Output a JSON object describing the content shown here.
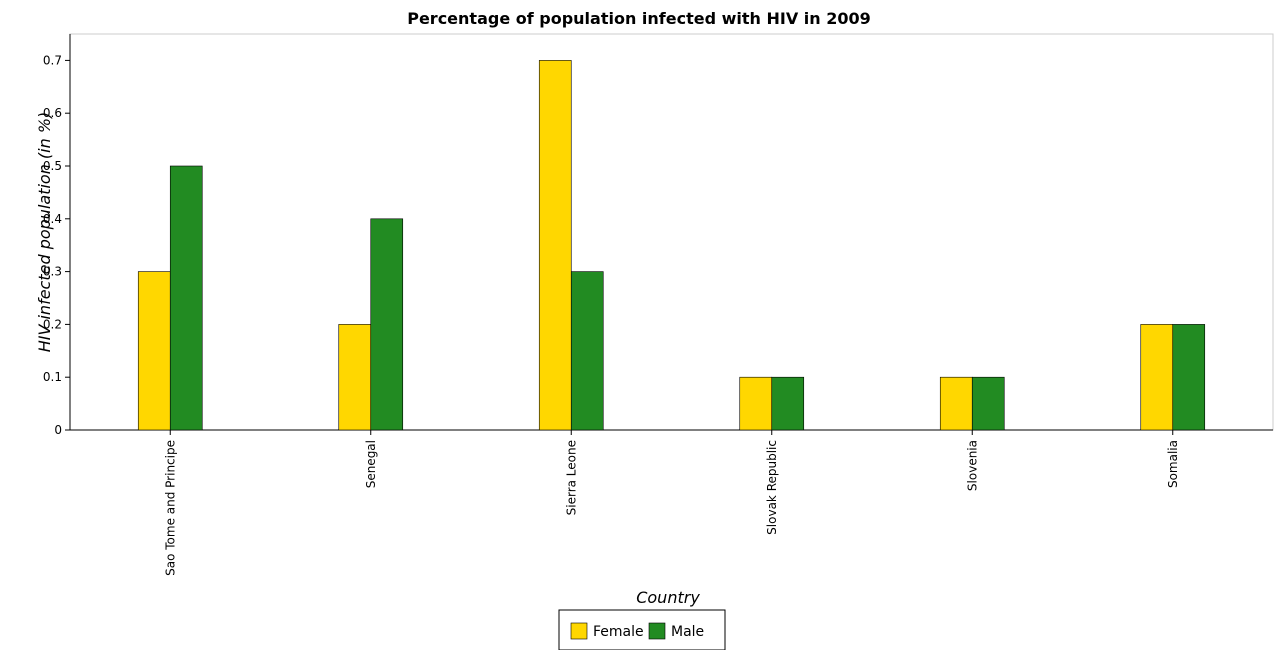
{
  "chart_data": {
    "type": "bar",
    "title": "Percentage of population infected with HIV in 2009",
    "xlabel": "Country",
    "ylabel": "HIV infected population (in %)",
    "categories": [
      "Sao Tome and Principe",
      "Senegal",
      "Sierra Leone",
      "Slovak Republic",
      "Slovenia",
      "Somalia"
    ],
    "series": [
      {
        "name": "Female",
        "color": "#FFD700",
        "values": [
          0.3,
          0.2,
          0.7,
          0.1,
          0.1,
          0.2
        ]
      },
      {
        "name": "Male",
        "color": "#228B22",
        "values": [
          0.5,
          0.4,
          0.3,
          0.1,
          0.1,
          0.2
        ]
      }
    ],
    "ylim": [
      0,
      0.75
    ],
    "yticks": [
      "0",
      "0.1",
      "0.2",
      "0.3",
      "0.4",
      "0.5",
      "0.6",
      "0.7"
    ],
    "grid": false,
    "legend_position": "bottom-center"
  }
}
